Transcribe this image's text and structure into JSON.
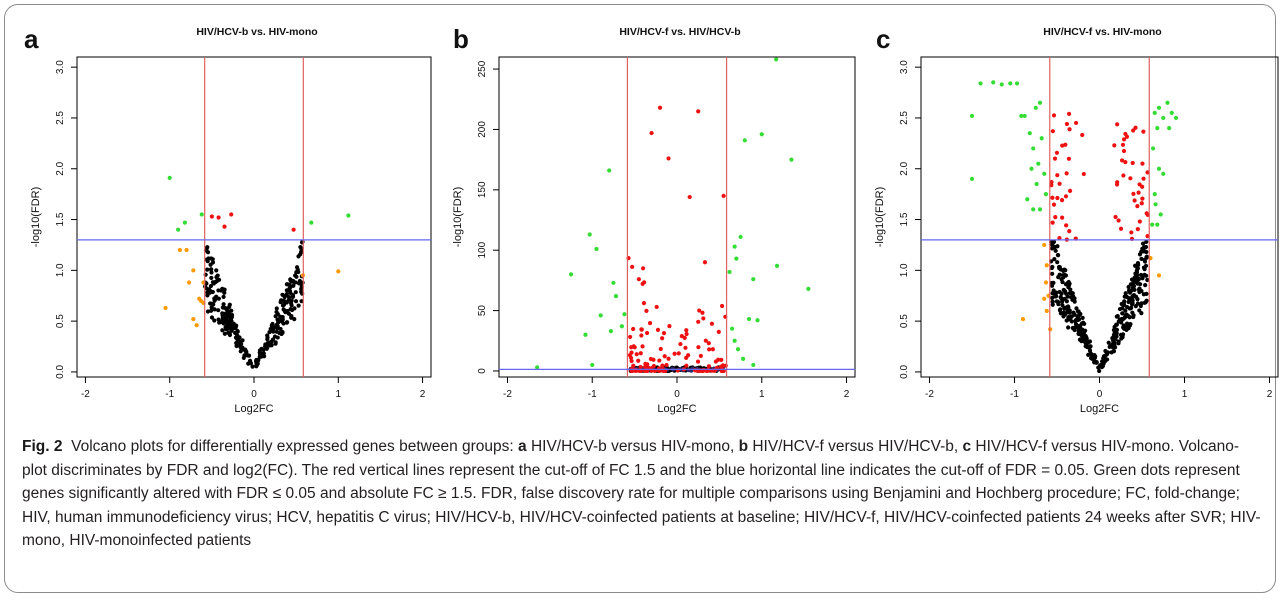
{
  "figure": {
    "label": "Fig. 2"
  },
  "caption": {
    "part1": "Volcano plots for differentially expressed genes between groups: ",
    "a_letter": "a",
    "a_text": " HIV/HCV-b versus HIV-mono, ",
    "b_letter": "b",
    "b_text": " HIV/HCV-f versus HIV/HCV-b, ",
    "c_letter": "c",
    "c_text": " HIV/HCV-f versus HIV-mono. Volcano-plot discriminates by FDR and log2(FC). The red vertical lines represent the cut-off of FC 1.5 and the blue horizontal line indicates the cut-off of FDR = 0.05. Green dots represent genes significantly altered with FDR ≤ 0.05 and absolute FC ≥ 1.5. FDR, false discovery rate for multiple comparisons using Benjamini and Hochberg procedure; FC, fold-change; HIV, human immunodeficiency virus; HCV, hepatitis C virus; HIV/HCV-b, HIV/HCV-coinfected patients at baseline; HIV/HCV-f, HIV/HCV-coinfected patients 24 weeks after SVR; HIV-mono, HIV-monoinfected patients"
  },
  "colors": {
    "green": "#33dd33",
    "red": "#ee1111",
    "orange": "#ff9900",
    "black": "#000000",
    "cutoff_vertical": "#e06060",
    "cutoff_horizontal": "#6666ee"
  },
  "chart_data": [
    {
      "panel": "a",
      "type": "scatter",
      "title": "HIV/HCV-b vs. HIV-mono",
      "xlabel": "Log2FC",
      "ylabel": "-log10(FDR)",
      "xlim": [
        -2.1,
        2.1
      ],
      "ylim": [
        -0.05,
        3.1
      ],
      "xticks": [
        -2,
        -1,
        0,
        1,
        2
      ],
      "yticks": [
        0.0,
        0.5,
        1.0,
        1.5,
        2.0,
        2.5,
        3.0
      ],
      "ytick_labels": [
        "0.0",
        "0.5",
        "1.0",
        "1.5",
        "2.0",
        "2.5",
        "3.0"
      ],
      "vlines": [
        -0.585,
        0.585
      ],
      "hline": 1.3,
      "series": [
        {
          "color_key": "green",
          "points": [
            [
              -1.0,
              1.91
            ],
            [
              -0.9,
              1.4
            ],
            [
              -0.82,
              1.47
            ],
            [
              -0.62,
              1.55
            ],
            [
              0.68,
              1.47
            ],
            [
              1.12,
              1.54
            ]
          ]
        },
        {
          "color_key": "red",
          "points": [
            [
              -0.5,
              1.53
            ],
            [
              -0.42,
              1.52
            ],
            [
              -0.35,
              1.43
            ],
            [
              -0.27,
              1.55
            ],
            [
              0.47,
              1.4
            ]
          ]
        },
        {
          "color_key": "orange",
          "points": [
            [
              -1.05,
              0.63
            ],
            [
              -0.88,
              1.2
            ],
            [
              -0.8,
              1.2
            ],
            [
              -0.77,
              0.88
            ],
            [
              -0.72,
              0.52
            ],
            [
              -0.65,
              0.72
            ],
            [
              -0.63,
              0.7
            ],
            [
              -0.6,
              0.88
            ],
            [
              -0.6,
              0.68
            ],
            [
              -0.68,
              0.46
            ],
            [
              -0.72,
              1.0
            ],
            [
              1.0,
              0.99
            ],
            [
              0.58,
              0.95
            ]
          ]
        }
      ],
      "black_cloud": {
        "n": 300,
        "max_x": 0.58,
        "slope": 1.9,
        "seed": 11
      }
    },
    {
      "panel": "b",
      "type": "scatter",
      "title": "HIV/HCV-f vs. HIV/HCV-b",
      "xlabel": "Log2FC",
      "ylabel": "-log10(FDR)",
      "xlim": [
        -2.1,
        2.1
      ],
      "ylim": [
        -5,
        260
      ],
      "xticks": [
        -2,
        -1,
        0,
        1,
        2
      ],
      "yticks": [
        0,
        50,
        100,
        150,
        200,
        250
      ],
      "ytick_labels": [
        "0",
        "50",
        "100",
        "150",
        "200",
        "250"
      ],
      "vlines": [
        -0.585,
        0.585
      ],
      "hline": 1.3,
      "series": [
        {
          "color_key": "green",
          "points": [
            [
              -1.65,
              3
            ],
            [
              -1.25,
              80
            ],
            [
              -1.03,
              113
            ],
            [
              -0.95,
              101
            ],
            [
              -0.8,
              166
            ],
            [
              -0.75,
              73
            ],
            [
              -0.72,
              62
            ],
            [
              -0.9,
              46
            ],
            [
              -0.78,
              33
            ],
            [
              -1.08,
              30
            ],
            [
              -0.65,
              37
            ],
            [
              -0.62,
              47
            ],
            [
              0.75,
              111
            ],
            [
              0.68,
              103
            ],
            [
              0.7,
              93
            ],
            [
              0.8,
              191
            ],
            [
              1.0,
              196
            ],
            [
              1.18,
              87
            ],
            [
              1.35,
              175
            ],
            [
              1.55,
              68
            ],
            [
              0.9,
              76
            ],
            [
              0.62,
              82
            ],
            [
              0.85,
              43
            ],
            [
              0.95,
              42
            ],
            [
              0.65,
              35
            ],
            [
              0.72,
              18
            ],
            [
              0.78,
              10
            ],
            [
              0.68,
              25
            ],
            [
              1.17,
              258
            ],
            [
              -1.0,
              5
            ],
            [
              0.9,
              5
            ]
          ]
        },
        {
          "color_key": "red",
          "points": [
            [
              -0.45,
              76
            ],
            [
              -0.3,
              197
            ],
            [
              -0.2,
              218
            ],
            [
              -0.1,
              176
            ],
            [
              0.25,
              215
            ],
            [
              0.15,
              144
            ],
            [
              0.55,
              145
            ],
            [
              0.33,
              90
            ],
            [
              -0.4,
              85
            ]
          ]
        }
      ],
      "red_cloud": {
        "n": 130,
        "min_abs_x": 0.0,
        "max_x": 0.58,
        "y_max": 70,
        "seed": 5
      },
      "black_cloud": {
        "n": 120,
        "max_x": 0.55,
        "y_max": 3,
        "seed": 21
      },
      "blue_cloud": {
        "n": 40,
        "max_x": 0.6,
        "y_max": 2,
        "seed": 31
      }
    },
    {
      "panel": "c",
      "type": "scatter",
      "title": "HIV/HCV-f vs. HIV-mono",
      "xlabel": "Log2FC",
      "ylabel": "-log10(FDR)",
      "xlim": [
        -2.1,
        2.1
      ],
      "ylim": [
        -0.05,
        3.1
      ],
      "xticks": [
        -2,
        -1,
        0,
        1,
        2
      ],
      "yticks": [
        0.0,
        0.5,
        1.0,
        1.5,
        2.0,
        2.5,
        3.0
      ],
      "ytick_labels": [
        "0.0",
        "0.5",
        "1.0",
        "1.5",
        "2.0",
        "2.5",
        "3.0"
      ],
      "vlines": [
        -0.585,
        0.585
      ],
      "hline": 1.3,
      "series": [
        {
          "color_key": "green",
          "points": [
            [
              -1.5,
              1.9
            ],
            [
              -1.5,
              2.52
            ],
            [
              -1.4,
              2.84
            ],
            [
              -1.25,
              2.85
            ],
            [
              -1.15,
              2.83
            ],
            [
              -1.05,
              2.84
            ],
            [
              -0.97,
              2.84
            ],
            [
              -0.92,
              2.52
            ],
            [
              -0.88,
              2.52
            ],
            [
              -0.82,
              2.35
            ],
            [
              -0.78,
              2.2
            ],
            [
              -0.75,
              2.6
            ],
            [
              -0.7,
              2.65
            ],
            [
              -0.68,
              2.3
            ],
            [
              -0.72,
              2.05
            ],
            [
              -0.8,
              2.0
            ],
            [
              -0.65,
              1.95
            ],
            [
              -0.74,
              1.85
            ],
            [
              -0.7,
              1.6
            ],
            [
              -0.78,
              1.6
            ],
            [
              -0.85,
              1.7
            ],
            [
              -0.63,
              1.75
            ],
            [
              0.63,
              2.2
            ],
            [
              0.65,
              2.55
            ],
            [
              0.7,
              2.6
            ],
            [
              0.75,
              2.5
            ],
            [
              0.8,
              2.65
            ],
            [
              0.85,
              2.55
            ],
            [
              0.9,
              2.5
            ],
            [
              0.82,
              2.4
            ],
            [
              0.68,
              2.4
            ],
            [
              0.7,
              2.0
            ],
            [
              0.75,
              1.95
            ],
            [
              0.65,
              1.75
            ],
            [
              0.72,
              1.55
            ],
            [
              0.62,
              1.45
            ],
            [
              0.68,
              1.45
            ],
            [
              0.66,
              1.65
            ]
          ]
        },
        {
          "color_key": "orange",
          "points": [
            [
              -0.9,
              0.52
            ],
            [
              -0.65,
              1.25
            ],
            [
              -0.62,
              1.05
            ],
            [
              -0.63,
              0.88
            ],
            [
              -0.6,
              0.75
            ],
            [
              -0.65,
              0.72
            ],
            [
              -0.58,
              0.42
            ],
            [
              -0.62,
              0.6
            ],
            [
              0.7,
              0.95
            ],
            [
              0.6,
              1.12
            ]
          ]
        }
      ],
      "red_cloud": {
        "n": 70,
        "min_abs_x": 0.15,
        "max_x": 0.57,
        "y_min": 1.3,
        "y_max": 2.55,
        "seed": 7
      },
      "black_cloud": {
        "n": 380,
        "max_x": 0.57,
        "slope": 2.1,
        "seed": 13
      }
    }
  ],
  "panels": [
    {
      "letter": "a",
      "title": "HIV/HCV-b vs. HIV-mono"
    },
    {
      "letter": "b",
      "title": "HIV/HCV-f vs. HIV/HCV-b"
    },
    {
      "letter": "c",
      "title": "HIV/HCV-f vs. HIV-mono"
    }
  ]
}
